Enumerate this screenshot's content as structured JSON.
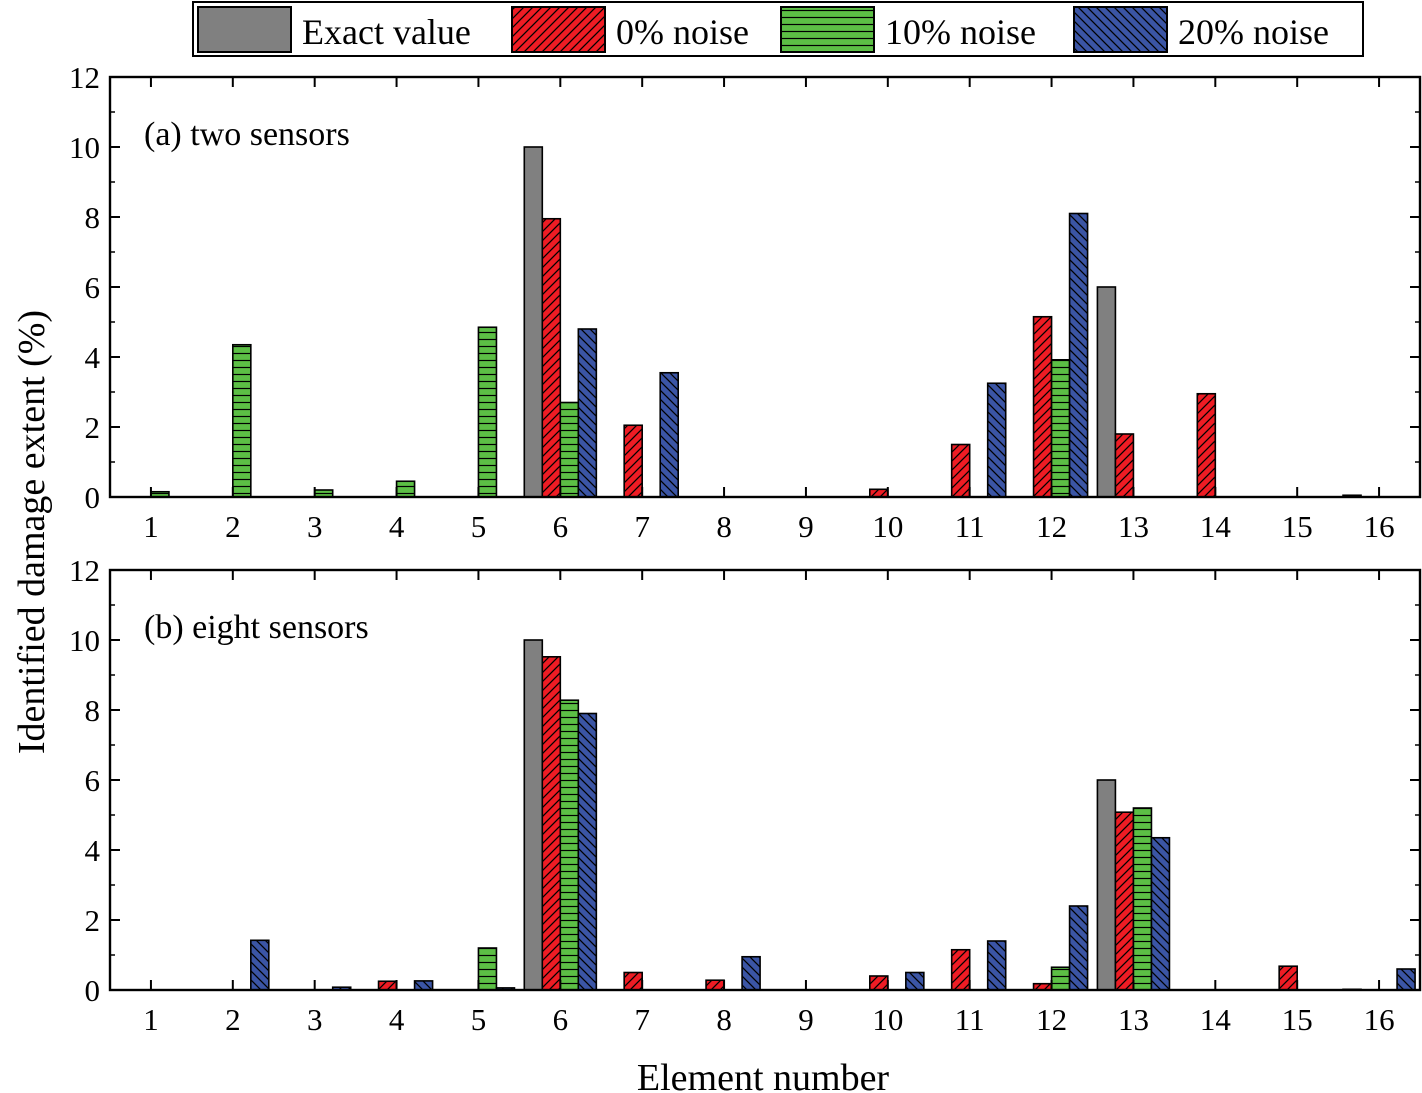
{
  "legend": {
    "entries": [
      {
        "label": "Exact value",
        "color": "#808080",
        "pattern": "solid"
      },
      {
        "label": "0% noise",
        "color": "#ee1c24",
        "pattern": "diag"
      },
      {
        "label": "10% noise",
        "color": "#5cbf45",
        "pattern": "horiz"
      },
      {
        "label": "20% noise",
        "color": "#3b55a5",
        "pattern": "backdiag"
      }
    ]
  },
  "chart_data": [
    {
      "type": "bar",
      "title": "(a) two sensors",
      "xlabel": "Element number",
      "ylabel": "Identified damage extent (%)",
      "ylim": [
        0,
        12
      ],
      "yticks": [
        "0",
        "2",
        "4",
        "6",
        "8",
        "10",
        "12"
      ],
      "categories": [
        "1",
        "2",
        "3",
        "4",
        "5",
        "6",
        "7",
        "8",
        "9",
        "10",
        "11",
        "12",
        "13",
        "14",
        "15",
        "16"
      ],
      "series": [
        {
          "name": "Exact value",
          "values": [
            0,
            0,
            0,
            0,
            0,
            10,
            0,
            0,
            0,
            0,
            0,
            0,
            6,
            0,
            0,
            0.05
          ]
        },
        {
          "name": "0% noise",
          "values": [
            0,
            0,
            0,
            0,
            0,
            7.95,
            2.05,
            0,
            0,
            0.22,
            1.5,
            5.15,
            1.8,
            2.95,
            0,
            0
          ]
        },
        {
          "name": "10% noise",
          "values": [
            0.15,
            4.35,
            0.2,
            0.45,
            4.85,
            2.7,
            0,
            0,
            0,
            0,
            0,
            3.92,
            0,
            0,
            0,
            0
          ]
        },
        {
          "name": "20% noise",
          "values": [
            0,
            0,
            0,
            0,
            0,
            4.8,
            3.55,
            0,
            0,
            0,
            3.25,
            8.1,
            0,
            0,
            0,
            0
          ]
        }
      ]
    },
    {
      "type": "bar",
      "title": "(b) eight sensors",
      "xlabel": "Element number",
      "ylabel": "Identified damage extent (%)",
      "ylim": [
        0,
        12
      ],
      "yticks": [
        "0",
        "2",
        "4",
        "6",
        "8",
        "10",
        "12"
      ],
      "categories": [
        "1",
        "2",
        "3",
        "4",
        "5",
        "6",
        "7",
        "8",
        "9",
        "10",
        "11",
        "12",
        "13",
        "14",
        "15",
        "16"
      ],
      "series": [
        {
          "name": "Exact value",
          "values": [
            0,
            0,
            0,
            0,
            0,
            10,
            0,
            0,
            0,
            0,
            0,
            0,
            6,
            0,
            0,
            0.02
          ]
        },
        {
          "name": "0% noise",
          "values": [
            0,
            0,
            0,
            0.25,
            0,
            9.52,
            0.5,
            0.28,
            0,
            0.4,
            1.15,
            0.18,
            5.08,
            0,
            0.68,
            0
          ]
        },
        {
          "name": "10% noise",
          "values": [
            0,
            0,
            0,
            0,
            1.2,
            8.28,
            0,
            0,
            0,
            0,
            0,
            0.65,
            5.2,
            0,
            0,
            0
          ]
        },
        {
          "name": "20% noise",
          "values": [
            0,
            1.42,
            0.08,
            0.26,
            0.06,
            7.9,
            0,
            0.95,
            0,
            0.5,
            1.4,
            2.4,
            4.35,
            0,
            0,
            0.6
          ]
        }
      ]
    }
  ]
}
